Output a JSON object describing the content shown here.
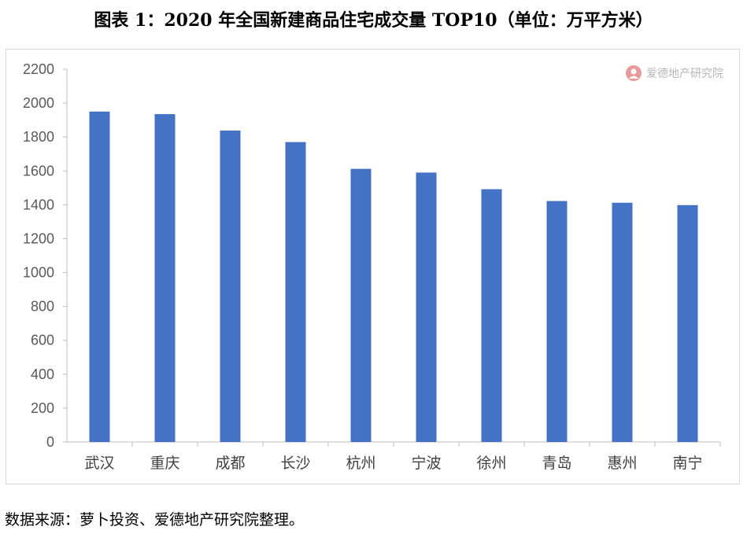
{
  "title": "图表 1：2020 年全国新建商品住宅成交量 TOP10（单位：万平方米）",
  "watermark": {
    "text": "爱德地产研究院",
    "icon": "aide-logo-icon",
    "color": "#e89a9a"
  },
  "source": "数据来源：萝卜投资、爱德地产研究院整理。",
  "chart_data": {
    "type": "bar",
    "title": "图表 1：2020 年全国新建商品住宅成交量 TOP10（单位：万平方米）",
    "xlabel": "",
    "ylabel": "",
    "categories": [
      "武汉",
      "重庆",
      "成都",
      "长沙",
      "杭州",
      "宁波",
      "徐州",
      "青岛",
      "惠州",
      "南宁"
    ],
    "values": [
      1950,
      1935,
      1838,
      1770,
      1612,
      1590,
      1492,
      1422,
      1412,
      1398
    ],
    "ylim": [
      0,
      2200
    ],
    "yticks": [
      0,
      200,
      400,
      600,
      800,
      1000,
      1200,
      1400,
      1600,
      1800,
      2000,
      2200
    ],
    "bar_color": "#4472c4",
    "grid": false,
    "legend": "none"
  }
}
